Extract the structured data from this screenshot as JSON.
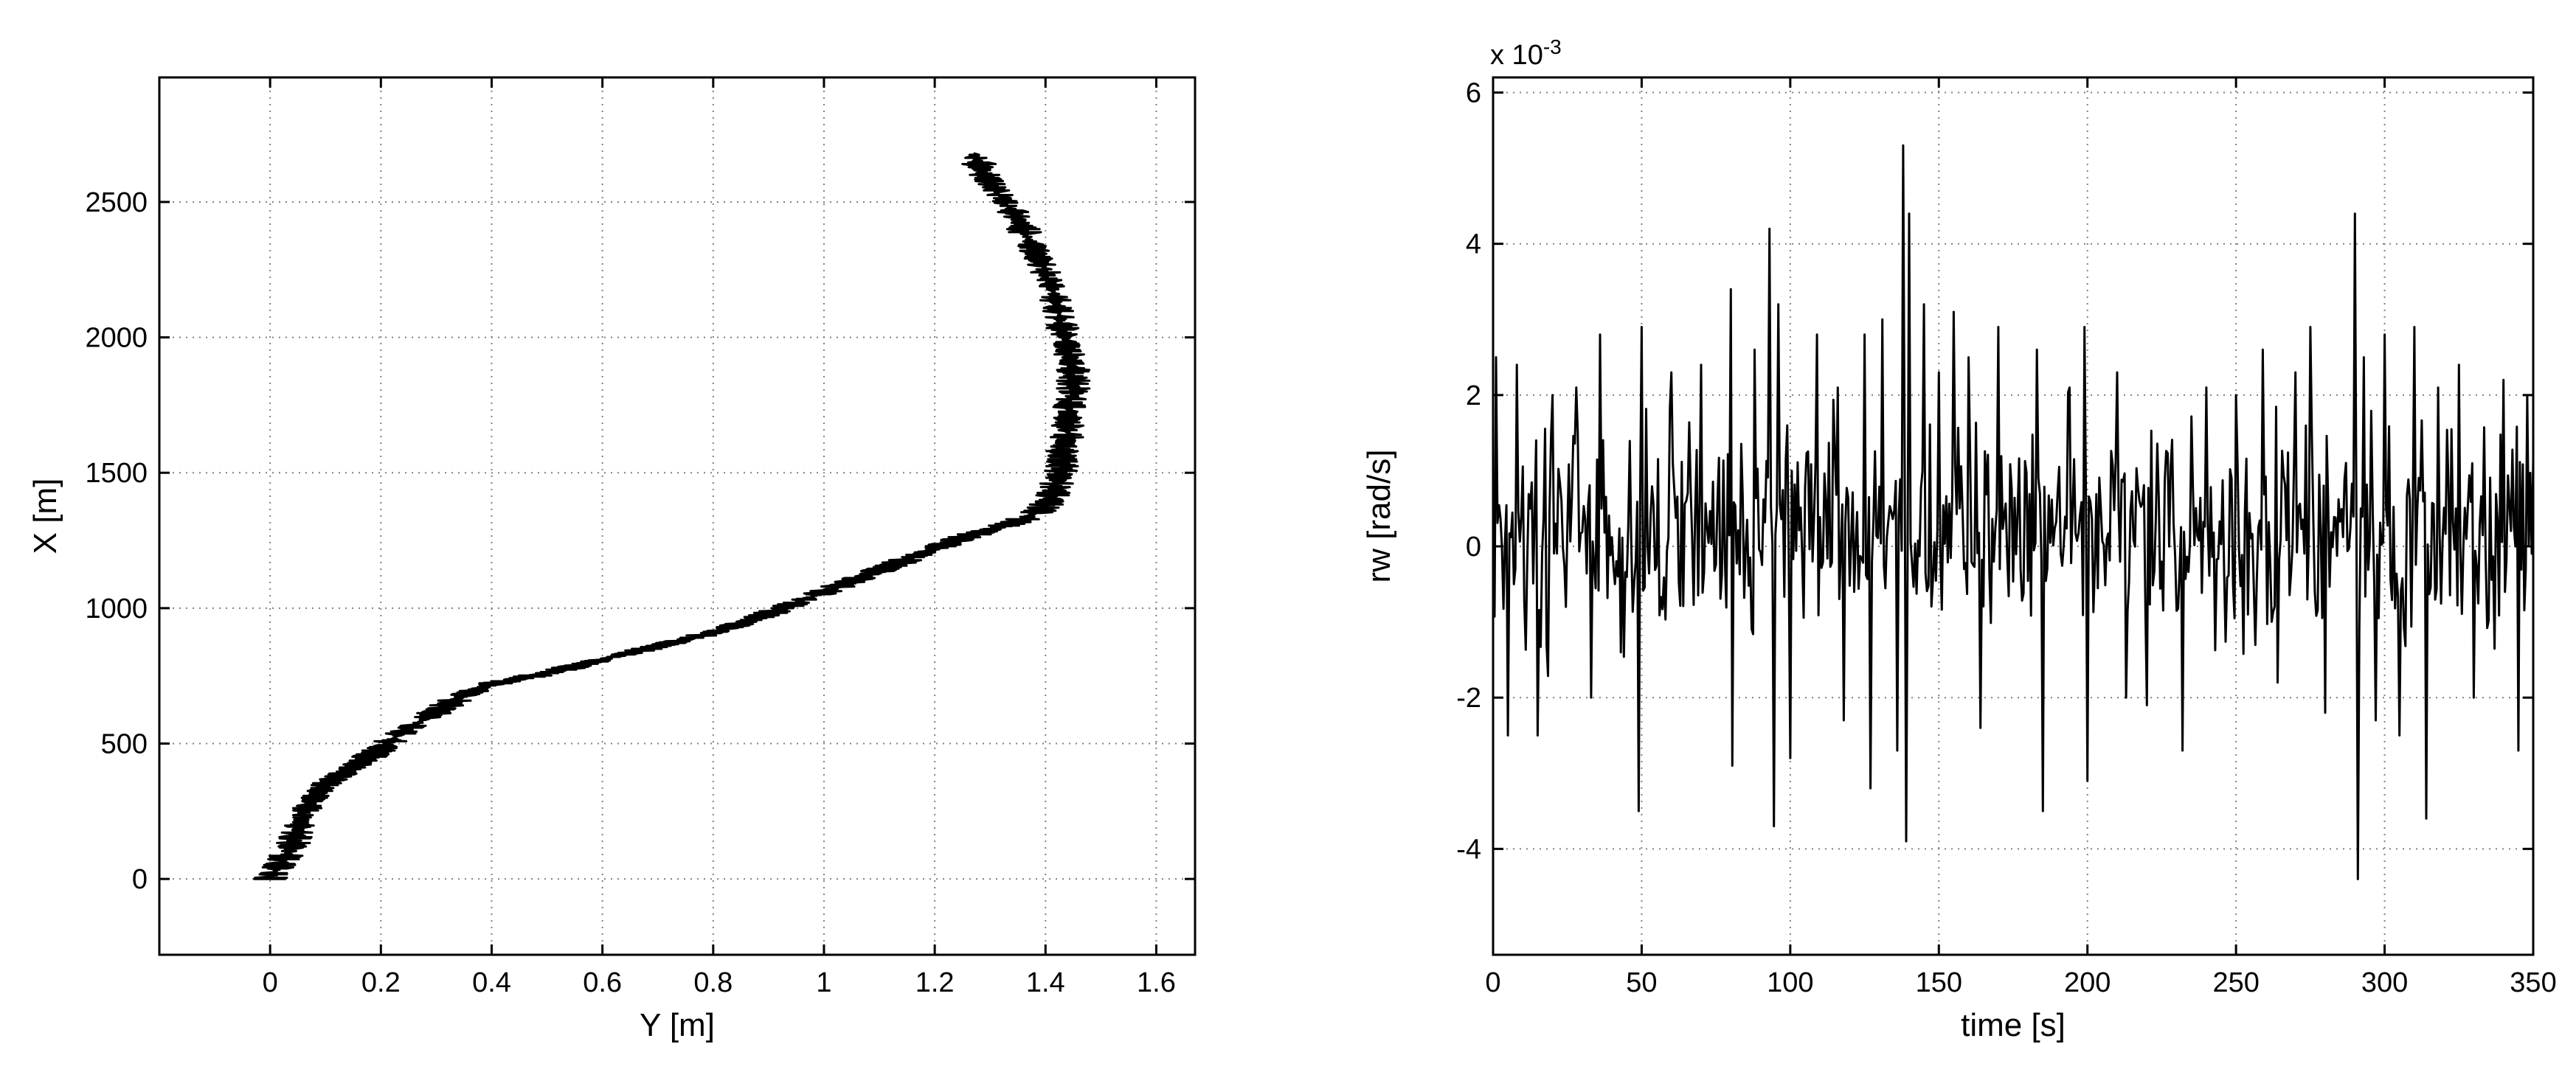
{
  "chart_data": [
    {
      "type": "line",
      "title": "",
      "xlabel": "Y [m]",
      "ylabel": "X [m]",
      "xlim": [
        -0.2,
        1.67
      ],
      "ylim": [
        -280,
        2960
      ],
      "xticks": [
        0,
        0.2,
        0.4,
        0.6,
        0.8,
        1,
        1.2,
        1.4,
        1.6
      ],
      "xticklabels": [
        "0",
        "0.2",
        "0.4",
        "0.6",
        "0.8",
        "1",
        "1.2",
        "1.4",
        "1.6"
      ],
      "yticks": [
        0,
        500,
        1000,
        1500,
        2000,
        2500
      ],
      "yticklabels": [
        "0",
        "500",
        "1000",
        "1500",
        "2000",
        "2500"
      ],
      "grid": true,
      "line_color": "#000000",
      "noise_amplitude_y_m": 0.03,
      "series": [
        {
          "x": [
            0.0,
            0.02,
            0.04,
            0.05,
            0.06,
            0.08,
            0.1,
            0.14,
            0.17,
            0.2,
            0.23,
            0.27,
            0.31,
            0.35,
            0.4,
            0.45,
            0.5,
            0.56,
            0.62,
            0.68,
            0.74,
            0.8,
            0.86,
            0.9,
            0.95,
            1.0,
            1.05,
            1.1,
            1.15,
            1.2,
            1.25,
            1.3,
            1.35,
            1.39,
            1.41,
            1.42,
            1.43,
            1.43,
            1.44,
            1.44,
            1.45,
            1.45,
            1.44,
            1.43,
            1.42,
            1.41,
            1.39,
            1.37,
            1.35,
            1.32,
            1.29,
            1.27
          ],
          "y": [
            0,
            60,
            120,
            180,
            240,
            300,
            350,
            400,
            440,
            480,
            530,
            580,
            630,
            680,
            720,
            740,
            760,
            790,
            820,
            850,
            880,
            910,
            950,
            980,
            1020,
            1060,
            1100,
            1140,
            1180,
            1220,
            1260,
            1290,
            1320,
            1360,
            1400,
            1460,
            1520,
            1580,
            1640,
            1720,
            1800,
            1880,
            1960,
            2040,
            2120,
            2200,
            2280,
            2360,
            2440,
            2520,
            2600,
            2680
          ]
        }
      ]
    },
    {
      "type": "line",
      "title": "",
      "xlabel": "time [s]",
      "ylabel": "rw  [rad/s]",
      "exponent_label": "x 10-3",
      "scale_multiplier": 0.001,
      "xlim": [
        0,
        350
      ],
      "ylim": [
        -5.4,
        6.2
      ],
      "xticks": [
        0,
        50,
        100,
        150,
        200,
        250,
        300,
        350
      ],
      "xticklabels": [
        "0",
        "50",
        "100",
        "150",
        "200",
        "250",
        "300",
        "350"
      ],
      "yticks": [
        -4,
        -2,
        0,
        2,
        4,
        6
      ],
      "yticklabels": [
        "-4",
        "-2",
        "0",
        "2",
        "4",
        "6"
      ],
      "grid": true,
      "line_color": "#000000",
      "signal": "zero-mean noise, approx. 2 samples per second over 0-350 s, typical amplitude +/-1.5e-3 rad/s",
      "noise_amplitude": 0.7,
      "sample_step": 0.5,
      "series": [
        {
          "spikes": [
            {
              "t": 1,
              "v": 2.5
            },
            {
              "t": 5,
              "v": -2.5
            },
            {
              "t": 8,
              "v": 2.4
            },
            {
              "t": 15,
              "v": -2.5
            },
            {
              "t": 20,
              "v": 2.0
            },
            {
              "t": 28,
              "v": 2.1
            },
            {
              "t": 33,
              "v": -2.0
            },
            {
              "t": 36,
              "v": 2.8
            },
            {
              "t": 49,
              "v": -3.5
            },
            {
              "t": 50,
              "v": 2.9
            },
            {
              "t": 60,
              "v": 2.3
            },
            {
              "t": 70,
              "v": 2.4
            },
            {
              "t": 80,
              "v": 3.4
            },
            {
              "t": 80.5,
              "v": -2.9
            },
            {
              "t": 88,
              "v": 2.6
            },
            {
              "t": 93,
              "v": 4.2
            },
            {
              "t": 94.5,
              "v": -3.7
            },
            {
              "t": 96,
              "v": 3.2
            },
            {
              "t": 100,
              "v": -2.8
            },
            {
              "t": 109,
              "v": 2.8
            },
            {
              "t": 116,
              "v": 2.1
            },
            {
              "t": 118,
              "v": -2.3
            },
            {
              "t": 125,
              "v": 2.8
            },
            {
              "t": 127,
              "v": -3.2
            },
            {
              "t": 131,
              "v": 3.0
            },
            {
              "t": 136,
              "v": -2.7
            },
            {
              "t": 138,
              "v": 5.3
            },
            {
              "t": 139,
              "v": -3.9
            },
            {
              "t": 140,
              "v": 4.4
            },
            {
              "t": 145,
              "v": 3.2
            },
            {
              "t": 150,
              "v": 2.3
            },
            {
              "t": 155,
              "v": 3.1
            },
            {
              "t": 160,
              "v": 2.5
            },
            {
              "t": 164,
              "v": -2.4
            },
            {
              "t": 170,
              "v": 2.9
            },
            {
              "t": 183,
              "v": 2.6
            },
            {
              "t": 185,
              "v": -3.5
            },
            {
              "t": 194,
              "v": 2.1
            },
            {
              "t": 199,
              "v": 2.9
            },
            {
              "t": 200,
              "v": -3.1
            },
            {
              "t": 210,
              "v": 2.3
            },
            {
              "t": 213,
              "v": -2.0
            },
            {
              "t": 220,
              "v": -2.1
            },
            {
              "t": 232,
              "v": -2.7
            },
            {
              "t": 240,
              "v": 2.1
            },
            {
              "t": 250,
              "v": 2.0
            },
            {
              "t": 259,
              "v": 2.6
            },
            {
              "t": 264,
              "v": -1.8
            },
            {
              "t": 270,
              "v": 2.3
            },
            {
              "t": 275,
              "v": 2.9
            },
            {
              "t": 280,
              "v": -2.2
            },
            {
              "t": 290,
              "v": 4.4
            },
            {
              "t": 291,
              "v": -4.4
            },
            {
              "t": 293,
              "v": 2.5
            },
            {
              "t": 297,
              "v": -2.3
            },
            {
              "t": 300,
              "v": 2.8
            },
            {
              "t": 305,
              "v": -2.5
            },
            {
              "t": 310,
              "v": 2.9
            },
            {
              "t": 314,
              "v": -3.6
            },
            {
              "t": 318,
              "v": 2.1
            },
            {
              "t": 325,
              "v": 2.4
            },
            {
              "t": 330,
              "v": -2.0
            },
            {
              "t": 340,
              "v": 2.2
            },
            {
              "t": 345,
              "v": -2.7
            },
            {
              "t": 348,
              "v": 2.0
            }
          ]
        }
      ]
    }
  ]
}
